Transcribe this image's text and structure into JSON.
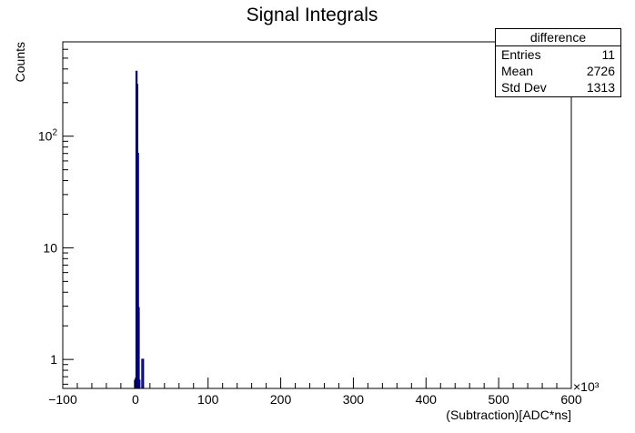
{
  "chart_data": {
    "type": "histogram",
    "title": "Signal Integrals",
    "xlabel": "(Subtraction)[ADC*ns]",
    "ylabel": "Counts",
    "x_multiplier_label": "×10³",
    "xlim": [
      -100,
      600
    ],
    "ylim": [
      0.55,
      700
    ],
    "y_scale": "log",
    "x_ticks": [
      -100,
      0,
      100,
      200,
      300,
      400,
      500,
      600
    ],
    "x_tick_labels": [
      "−100",
      "0",
      "100",
      "200",
      "300",
      "400",
      "500",
      "600"
    ],
    "y_major_ticks": [
      1,
      10,
      100
    ],
    "y_tick_labels": [
      "1",
      "10",
      "10²"
    ],
    "bins": [
      {
        "x_low": -1,
        "x_high": 1,
        "count": 0.65
      },
      {
        "x_low": 1,
        "x_high": 2,
        "count": 380
      },
      {
        "x_low": 2,
        "x_high": 3,
        "count": 290
      },
      {
        "x_low": 3,
        "x_high": 4,
        "count": 70
      },
      {
        "x_low": 4,
        "x_high": 5,
        "count": 2.9
      },
      {
        "x_low": 5,
        "x_high": 6,
        "count": 0.65
      },
      {
        "x_low": 9,
        "x_high": 11,
        "count": 1
      }
    ],
    "line_color": "#00007f",
    "stats": {
      "name": "difference",
      "entries_label": "Entries",
      "entries": "11",
      "mean_label": "Mean",
      "mean": "2726",
      "std_label": "Std Dev",
      "std": "1313"
    }
  }
}
